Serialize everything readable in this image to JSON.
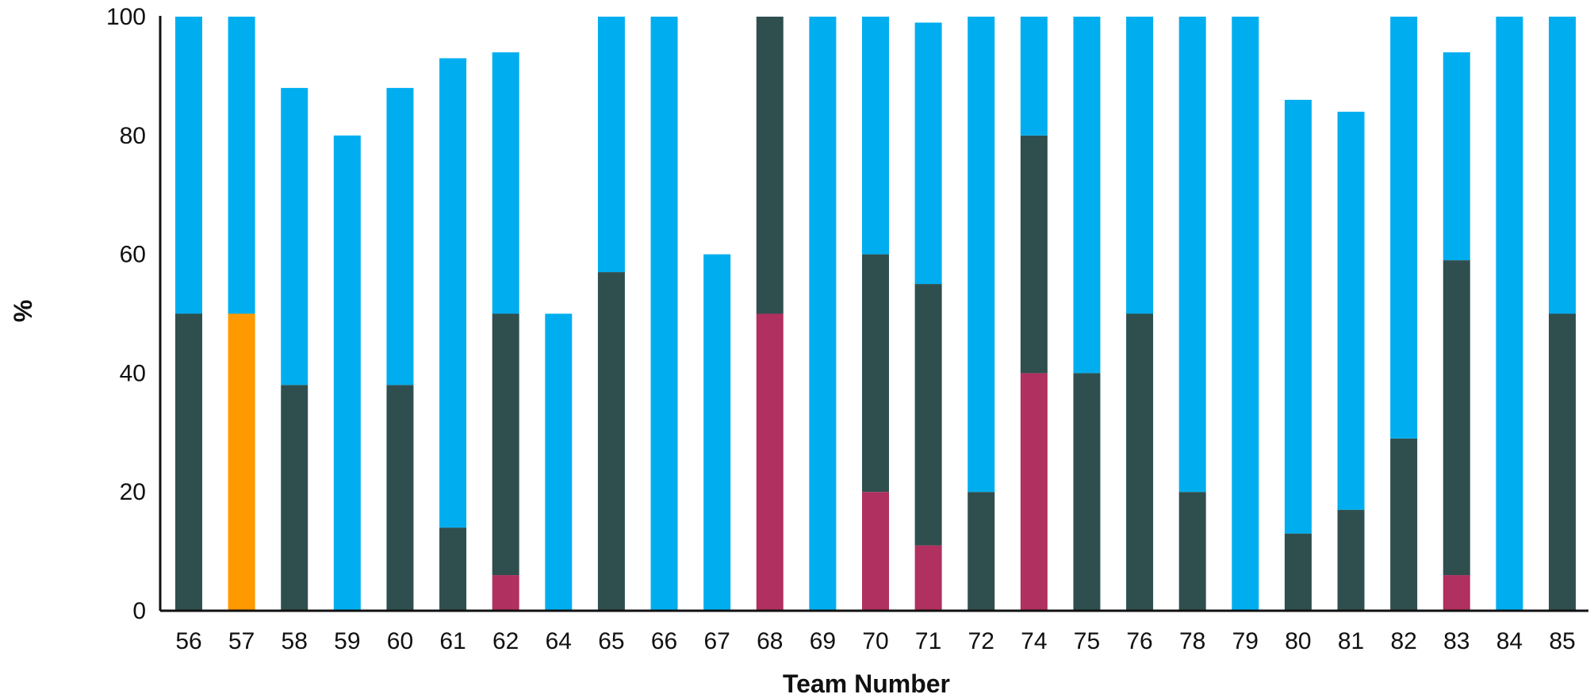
{
  "chart_data": {
    "type": "bar",
    "stacked": true,
    "title": "",
    "xlabel": "Team Number",
    "ylabel": "%",
    "ylim": [
      0,
      100
    ],
    "yticks": [
      0,
      20,
      40,
      60,
      80,
      100
    ],
    "grid": false,
    "legend": "none",
    "categories": [
      "56",
      "57",
      "58",
      "59",
      "60",
      "61",
      "62",
      "64",
      "65",
      "66",
      "67",
      "68",
      "69",
      "70",
      "71",
      "72",
      "74",
      "75",
      "76",
      "78",
      "79",
      "80",
      "81",
      "82",
      "83",
      "84",
      "85"
    ],
    "series": [
      {
        "color": "#b03060",
        "values": [
          0,
          0,
          0,
          0,
          0,
          0,
          6,
          0,
          0,
          0,
          0,
          50,
          0,
          20,
          11,
          0,
          40,
          0,
          0,
          0,
          0,
          0,
          0,
          0,
          6,
          0,
          0
        ]
      },
      {
        "color": "#ff9900",
        "values": [
          0,
          50,
          0,
          0,
          0,
          0,
          0,
          0,
          0,
          0,
          0,
          0,
          0,
          0,
          0,
          0,
          0,
          0,
          0,
          0,
          0,
          0,
          0,
          0,
          0,
          0,
          0
        ]
      },
      {
        "color": "#2f4f4f",
        "values": [
          50,
          0,
          38,
          0,
          38,
          14,
          44,
          0,
          57,
          0,
          0,
          50,
          0,
          40,
          44,
          20,
          40,
          40,
          50,
          20,
          0,
          13,
          17,
          29,
          53,
          0,
          50
        ]
      },
      {
        "color": "#00aeef",
        "values": [
          50,
          50,
          50,
          80,
          50,
          79,
          44,
          50,
          43,
          100,
          60,
          0,
          100,
          40,
          44,
          80,
          20,
          60,
          50,
          80,
          100,
          73,
          67,
          71,
          35,
          100,
          50
        ]
      }
    ]
  }
}
